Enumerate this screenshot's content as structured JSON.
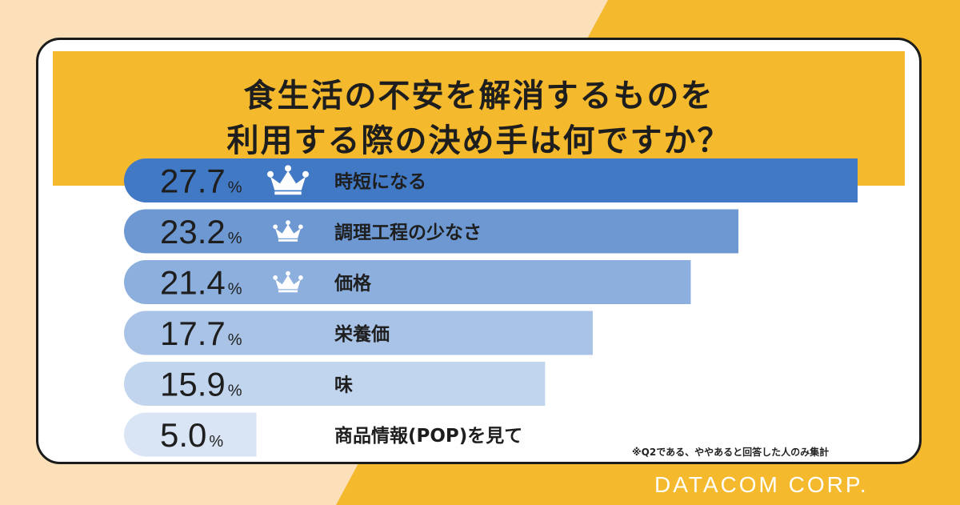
{
  "title": {
    "line1": "食生活の不安を解消するものを",
    "line2": "利用する際の決め手は何ですか？"
  },
  "chart_data": {
    "type": "bar",
    "orientation": "horizontal",
    "categories": [
      "時短になる",
      "調理工程の少なさ",
      "価格",
      "栄養価",
      "味",
      "商品情報(POP)を見て"
    ],
    "values": [
      27.7,
      23.2,
      21.4,
      17.7,
      15.9,
      5.0
    ],
    "value_labels": [
      "27.7",
      "23.2",
      "21.4",
      "17.7",
      "15.9",
      "5.0"
    ],
    "unit": "%",
    "crowns": [
      "large",
      "small",
      "small",
      "none",
      "none",
      "none"
    ],
    "bar_colors": [
      "#4279c5",
      "#6d98d2",
      "#8cafdd",
      "#a9c3e6",
      "#c1d5ee",
      "#d9e5f5"
    ]
  },
  "note": "※Q2である、ややあると回答した人のみ集計",
  "brand": "DATACOM CORP.",
  "colors": {
    "background": "#fbe0b9",
    "accent": "#f4b92c",
    "border": "#1b1b1b",
    "crown": "#ffffff"
  }
}
